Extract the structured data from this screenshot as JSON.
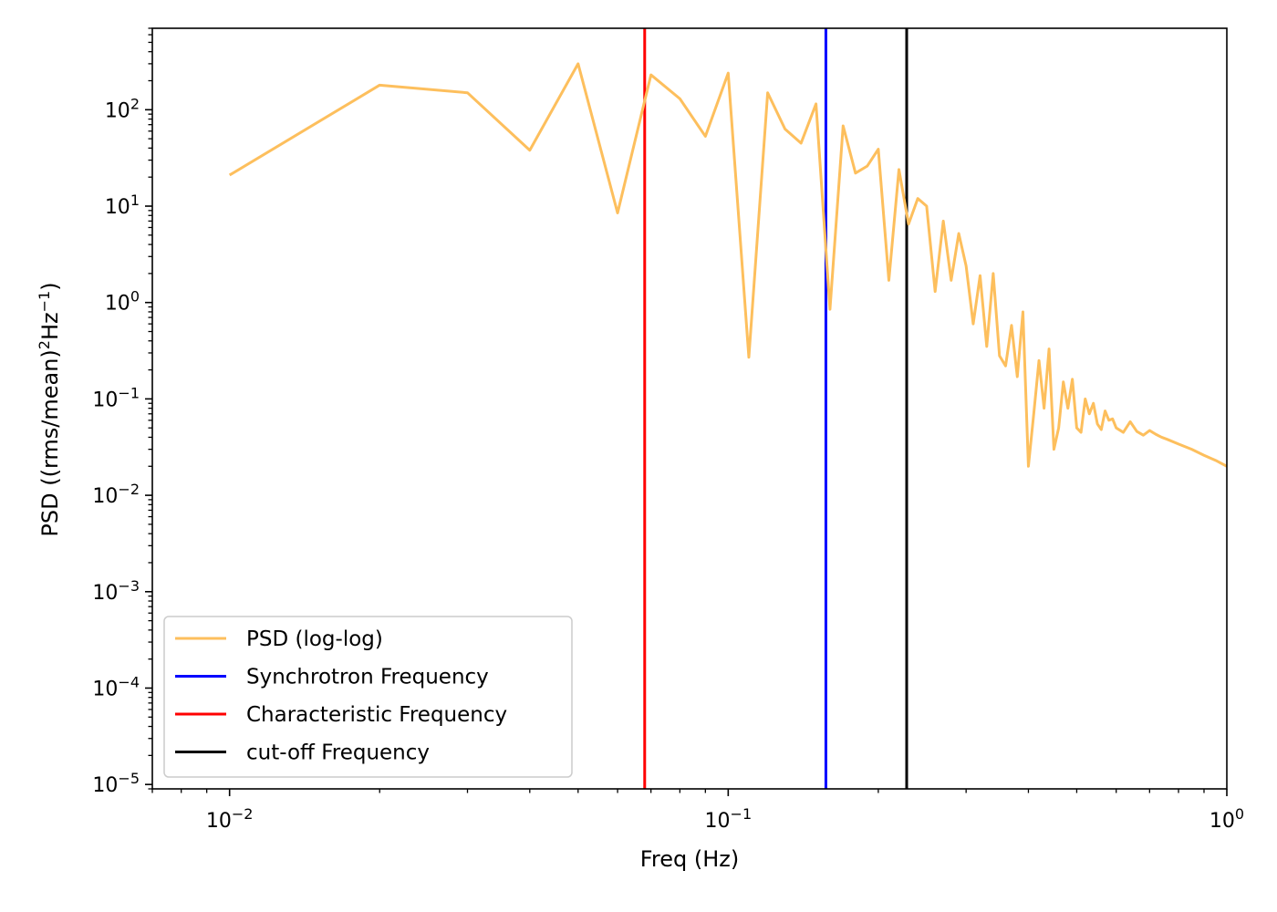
{
  "chart_data": {
    "type": "line",
    "title": "",
    "xlabel": "Freq (Hz)",
    "ylabel_parts": [
      "PSD ((rms/mean)",
      "2",
      "Hz",
      "−1",
      ")"
    ],
    "xscale": "log",
    "yscale": "log",
    "xlim": [
      0.007,
      1.0
    ],
    "ylim": [
      9e-06,
      700
    ],
    "grid": false,
    "legend_location": "lower-left",
    "x_major_ticks": [
      {
        "value": 0.01,
        "base": "10",
        "exp": "−2"
      },
      {
        "value": 0.1,
        "base": "10",
        "exp": "−1"
      },
      {
        "value": 1,
        "base": "10",
        "exp": "0"
      }
    ],
    "y_major_ticks": [
      {
        "value": 1e-05,
        "base": "10",
        "exp": "−5"
      },
      {
        "value": 0.0001,
        "base": "10",
        "exp": "−4"
      },
      {
        "value": 0.001,
        "base": "10",
        "exp": "−3"
      },
      {
        "value": 0.01,
        "base": "10",
        "exp": "−2"
      },
      {
        "value": 0.1,
        "base": "10",
        "exp": "−1"
      },
      {
        "value": 1,
        "base": "10",
        "exp": "0"
      },
      {
        "value": 10,
        "base": "10",
        "exp": "1"
      },
      {
        "value": 100,
        "base": "10",
        "exp": "2"
      }
    ],
    "series": [
      {
        "name": "PSD (log-log)",
        "kind": "line",
        "color": "#FDBF5D",
        "x": [
          0.01,
          0.02,
          0.03,
          0.04,
          0.05,
          0.06,
          0.07,
          0.08,
          0.09,
          0.1,
          0.11,
          0.12,
          0.13,
          0.14,
          0.15,
          0.16,
          0.17,
          0.18,
          0.19,
          0.2,
          0.21,
          0.22,
          0.23,
          0.24,
          0.25,
          0.26,
          0.27,
          0.28,
          0.29,
          0.3,
          0.31,
          0.32,
          0.33,
          0.34,
          0.35,
          0.36,
          0.37,
          0.38,
          0.39,
          0.4,
          0.41,
          0.42,
          0.43,
          0.44,
          0.45,
          0.46,
          0.47,
          0.48,
          0.49,
          0.5,
          0.51,
          0.52,
          0.53,
          0.54,
          0.55,
          0.56,
          0.57,
          0.58,
          0.59,
          0.6,
          0.62,
          0.64,
          0.66,
          0.68,
          0.7,
          0.72,
          0.74,
          0.76,
          0.8,
          0.85,
          0.9,
          0.95,
          1.0
        ],
        "y": [
          21,
          180,
          150,
          38,
          300,
          8.5,
          230,
          130,
          53,
          240,
          0.27,
          150,
          63,
          45,
          115,
          0.85,
          68,
          22,
          26,
          39,
          1.7,
          24,
          6.5,
          12,
          10,
          1.3,
          7,
          1.7,
          5.2,
          2.4,
          0.6,
          1.9,
          0.35,
          2.0,
          0.28,
          0.22,
          0.58,
          0.17,
          0.8,
          0.02,
          0.07,
          0.25,
          0.08,
          0.33,
          0.03,
          0.05,
          0.15,
          0.08,
          0.16,
          0.05,
          0.045,
          0.1,
          0.07,
          0.09,
          0.055,
          0.048,
          0.075,
          0.06,
          0.062,
          0.05,
          0.045,
          0.058,
          0.046,
          0.042,
          0.047,
          0.043,
          0.04,
          0.038,
          0.034,
          0.03,
          0.026,
          0.023,
          0.02
        ]
      },
      {
        "name": "Synchrotron Frequency",
        "kind": "vline",
        "color": "#0000FF",
        "x": 0.157
      },
      {
        "name": "Characteristic Frequency",
        "kind": "vline",
        "color": "#FF0000",
        "x": 0.068
      },
      {
        "name": "cut-off Frequency",
        "kind": "vline",
        "color": "#000000",
        "x": 0.228
      }
    ]
  }
}
